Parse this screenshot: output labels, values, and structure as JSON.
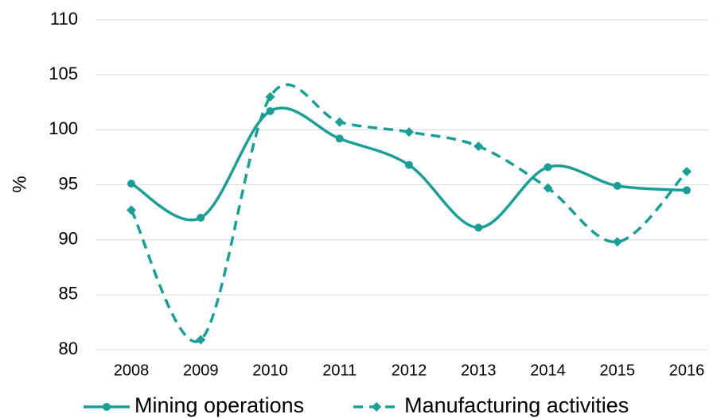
{
  "chart_data": {
    "type": "line",
    "y_label": "%",
    "categories": [
      "2008",
      "2009",
      "2010",
      "2011",
      "2012",
      "2013",
      "2014",
      "2015",
      "2016"
    ],
    "series": [
      {
        "name": "Mining operations",
        "color": "#1a9e96",
        "line_style": "solid",
        "marker": "circle",
        "values": [
          95.1,
          92.0,
          101.7,
          99.2,
          96.8,
          91.1,
          96.6,
          94.9,
          94.5
        ]
      },
      {
        "name": "Manufacturing activities",
        "color": "#1a9e96",
        "line_style": "dashed",
        "marker": "diamond",
        "values": [
          92.7,
          80.9,
          103.0,
          100.7,
          99.8,
          98.5,
          94.7,
          89.8,
          96.2
        ]
      }
    ],
    "ylim": [
      80,
      110
    ],
    "yticks": [
      80,
      85,
      90,
      95,
      100,
      105,
      110
    ],
    "grid": true,
    "smooth": true,
    "legend": "bottom"
  }
}
